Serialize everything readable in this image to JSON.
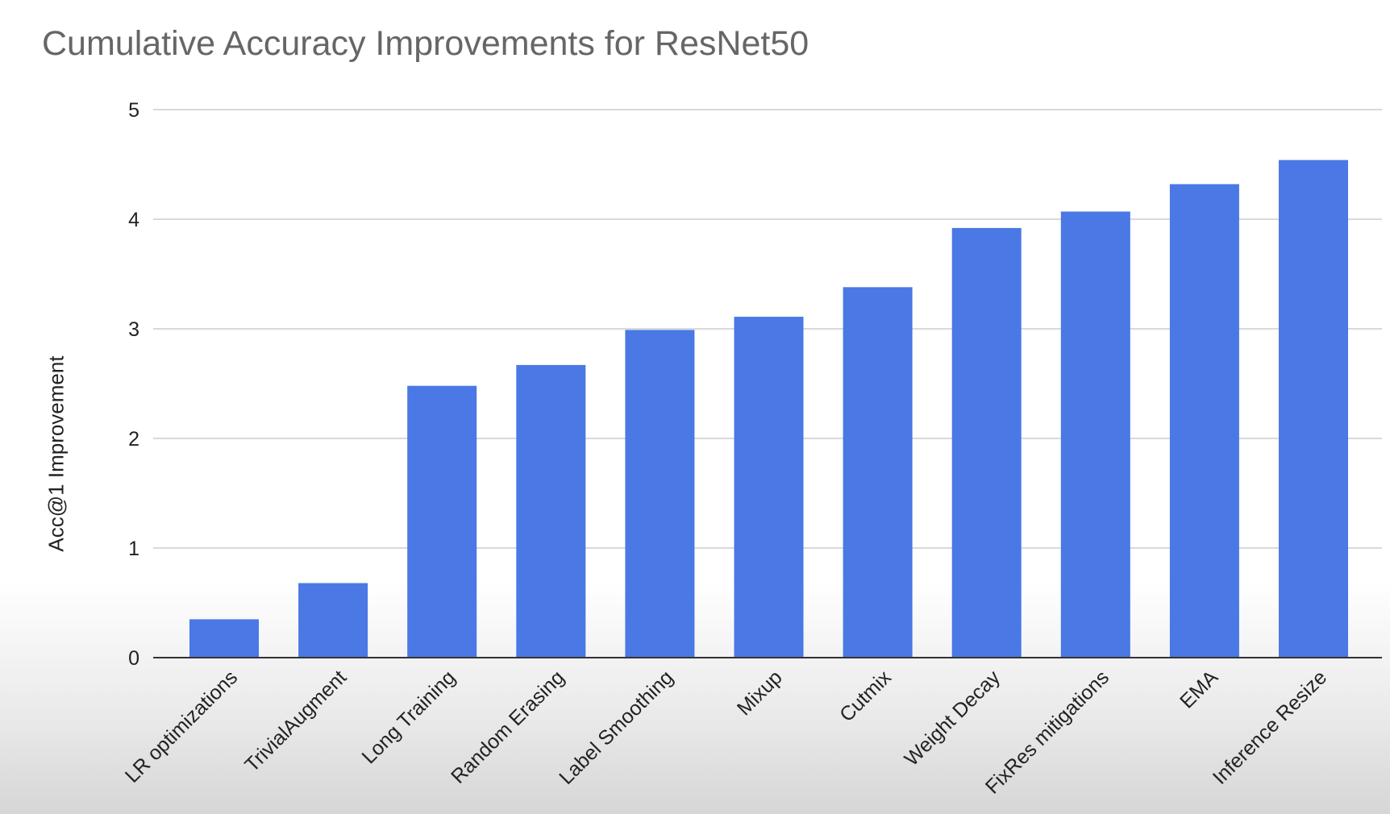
{
  "chart_data": {
    "type": "bar",
    "title": "Cumulative Accuracy Improvements for ResNet50",
    "xlabel": "",
    "ylabel": "Acc@1 Improvement",
    "ylim": [
      0,
      5
    ],
    "yticks": [
      0,
      1,
      2,
      3,
      4,
      5
    ],
    "grid": true,
    "legend": "none",
    "bar_color": "#4a78e4",
    "categories": [
      "LR optimizations",
      "TrivialAugment",
      "Long Training",
      "Random Erasing",
      "Label Smoothing",
      "Mixup",
      "Cutmix",
      "Weight Decay",
      "FixRes mitigations",
      "EMA",
      "Inference Resize"
    ],
    "values": [
      0.35,
      0.68,
      2.48,
      2.67,
      2.99,
      3.11,
      3.38,
      3.92,
      4.07,
      4.32,
      4.54
    ]
  }
}
